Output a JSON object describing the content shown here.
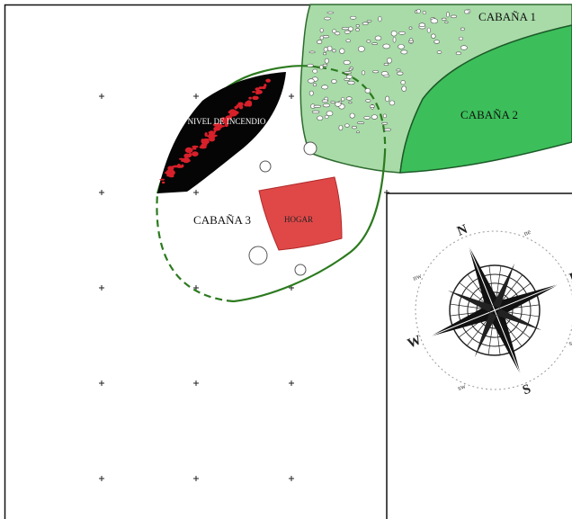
{
  "labels": {
    "cabana1": "CABAÑA 1",
    "cabana2": "CABAÑA 2",
    "cabana3": "CABAÑA 3",
    "nivel": "NIVEL DE INCENDIO",
    "hogar": "HOGAR"
  },
  "compass": {
    "n": "N",
    "e": "E",
    "s": "S",
    "w": "W",
    "ne": "ne",
    "se": "se",
    "sw": "sw",
    "nw": "nw"
  }
}
